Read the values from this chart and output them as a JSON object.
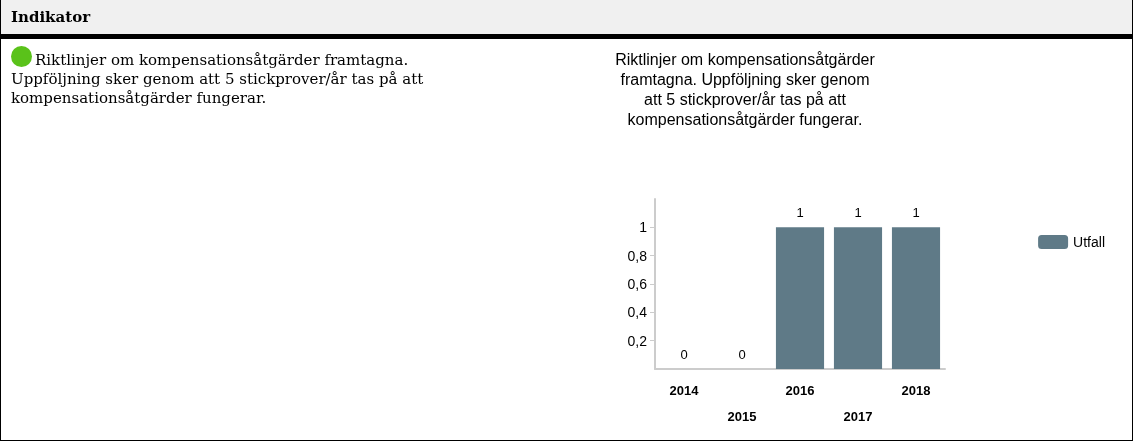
{
  "chart_data": {
    "type": "bar",
    "title": "Riktlinjer om kompensationsåtgärder\nframtagna. Uppföljning sker genom\natt 5 stickprover/år tas på att\nkompensationsåtgärder fungerar.",
    "annotations": [
      "Indikator",
      "Riktlinjer om kompensationsåtgärder framtagna. Uppföljning sker genom att 5 stickprover/år tas på att kompensationsåtgärder fungerar."
    ],
    "categories": [
      "2014",
      "2015",
      "2016",
      "2017",
      "2018"
    ],
    "series": [
      {
        "name": "Utfall",
        "color": "#5f7a87",
        "values": [
          0,
          0,
          1,
          1,
          1
        ]
      }
    ],
    "ylim": [
      0,
      1.2
    ],
    "yticks": [
      {
        "value": 0.2,
        "label": "0,2"
      },
      {
        "value": 0.4,
        "label": "0,4"
      },
      {
        "value": 0.6,
        "label": "0,6"
      },
      {
        "value": 0.8,
        "label": "0,8"
      },
      {
        "value": 1,
        "label": "1"
      }
    ],
    "data_labels": true,
    "grid": false,
    "legend": "top right"
  }
}
